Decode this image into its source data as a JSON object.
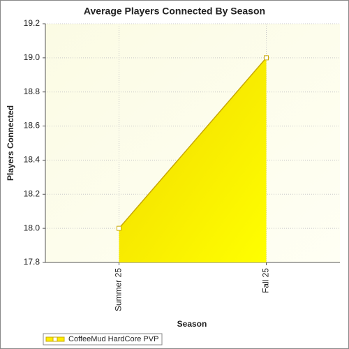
{
  "chart_data": {
    "type": "area",
    "title": "Average Players Connected By Season",
    "x_label": "Season",
    "y_label": "Players Connected",
    "categories": [
      "Summer 25",
      "Fall 25"
    ],
    "series": [
      {
        "name": "CoffeeMud HardCore PVP",
        "color": "#ffee00",
        "values": [
          18.0,
          19.0
        ]
      }
    ],
    "ylim": [
      17.8,
      19.2
    ],
    "yticks": [
      17.8,
      {
        "value": 18.0,
        "label": "18.0"
      },
      18.2,
      18.4,
      18.6,
      18.8,
      {
        "value": 19.0,
        "label": "19.0"
      },
      19.2
    ],
    "grid": true,
    "legend": "bottom-left"
  }
}
